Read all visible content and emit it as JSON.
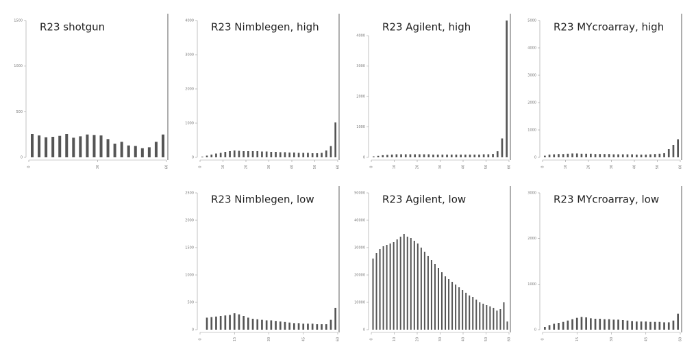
{
  "chart_data": [
    {
      "type": "histogram",
      "title": "R23 shotgun",
      "color": "#555555",
      "bins": [
        0,
        3,
        6,
        9,
        12,
        15,
        18,
        21,
        24,
        27,
        30,
        33,
        36,
        39,
        42,
        45,
        48,
        51,
        54,
        57,
        60
      ],
      "values": [
        255,
        240,
        220,
        225,
        235,
        255,
        215,
        230,
        250,
        245,
        240,
        200,
        150,
        170,
        130,
        125,
        100,
        110,
        170,
        250
      ],
      "xlim": [
        0,
        60
      ],
      "xticks": [
        0,
        30,
        60
      ],
      "ylim": [
        0,
        1500
      ],
      "yticks": [
        0,
        500,
        1000,
        1500
      ]
    },
    {
      "type": "histogram",
      "title": "R23 Nimblegen, high",
      "color": "#555555",
      "bins": [
        0,
        2,
        4,
        6,
        8,
        10,
        12,
        14,
        16,
        18,
        20,
        22,
        24,
        26,
        28,
        30,
        32,
        34,
        36,
        38,
        40,
        42,
        44,
        46,
        48,
        50,
        52,
        54,
        56,
        58,
        60
      ],
      "values": [
        20,
        50,
        80,
        110,
        130,
        160,
        180,
        200,
        190,
        180,
        180,
        180,
        180,
        170,
        170,
        160,
        160,
        150,
        150,
        140,
        140,
        130,
        130,
        130,
        120,
        120,
        130,
        200,
        330,
        1020
      ],
      "xlim": [
        0,
        60
      ],
      "xticks": [
        0,
        10,
        20,
        30,
        40,
        50,
        60
      ],
      "ylim": [
        0,
        4000
      ],
      "yticks": [
        0,
        1000,
        2000,
        3000,
        4000
      ]
    },
    {
      "type": "histogram",
      "title": "R23 Agilent, high",
      "color": "#555555",
      "bins": [
        0,
        2,
        4,
        6,
        8,
        10,
        12,
        14,
        16,
        18,
        20,
        22,
        24,
        26,
        28,
        30,
        32,
        34,
        36,
        38,
        40,
        42,
        44,
        46,
        48,
        50,
        52,
        54,
        56,
        58,
        60
      ],
      "values": [
        30,
        50,
        70,
        80,
        90,
        100,
        100,
        100,
        100,
        100,
        100,
        100,
        100,
        90,
        90,
        90,
        90,
        90,
        90,
        90,
        90,
        90,
        90,
        90,
        100,
        100,
        110,
        200,
        620,
        4500
      ],
      "xlim": [
        0,
        60
      ],
      "xticks": [
        0,
        10,
        20,
        30,
        40,
        50,
        60
      ],
      "ylim": [
        0,
        4500
      ],
      "yticks": [
        0,
        1000,
        2000,
        3000,
        4000
      ]
    },
    {
      "type": "histogram",
      "title": "R23 MYcroarray, high",
      "color": "#555555",
      "bins": [
        0,
        2,
        4,
        6,
        8,
        10,
        12,
        14,
        16,
        18,
        20,
        22,
        24,
        26,
        28,
        30,
        32,
        34,
        36,
        38,
        40,
        42,
        44,
        46,
        48,
        50,
        52,
        54,
        56,
        58,
        60
      ],
      "values": [
        60,
        100,
        110,
        120,
        120,
        130,
        140,
        140,
        130,
        130,
        130,
        120,
        120,
        120,
        120,
        110,
        110,
        110,
        110,
        110,
        100,
        100,
        100,
        110,
        120,
        130,
        150,
        300,
        450,
        660
      ],
      "xlim": [
        0,
        60
      ],
      "xticks": [
        0,
        10,
        20,
        30,
        40,
        50,
        60
      ],
      "ylim": [
        0,
        5000
      ],
      "yticks": [
        0,
        1000,
        2000,
        3000,
        4000,
        5000
      ]
    },
    {
      "type": "histogram",
      "title": "R23 Nimblegen, low",
      "color": "#555555",
      "bins": [
        0,
        2,
        4,
        6,
        8,
        10,
        12,
        14,
        16,
        18,
        20,
        22,
        24,
        26,
        28,
        30,
        32,
        34,
        36,
        38,
        40,
        42,
        44,
        46,
        48,
        50,
        52,
        54,
        56,
        58,
        60
      ],
      "values": [
        0,
        220,
        230,
        240,
        250,
        260,
        270,
        300,
        280,
        250,
        220,
        200,
        190,
        180,
        170,
        170,
        160,
        150,
        140,
        130,
        120,
        120,
        110,
        110,
        110,
        100,
        100,
        100,
        180,
        400
      ],
      "xlim": [
        0,
        60
      ],
      "xticks": [
        0,
        15,
        30,
        45,
        60
      ],
      "ylim": [
        0,
        2500
      ],
      "yticks": [
        0,
        500,
        1000,
        1500,
        2000,
        2500
      ]
    },
    {
      "type": "histogram",
      "title": "R23 Agilent, low",
      "color": "#555555",
      "bins": [
        0,
        1.5,
        3,
        4.5,
        6,
        7.5,
        9,
        10.5,
        12,
        13.5,
        15,
        16.5,
        18,
        19.5,
        21,
        22.5,
        24,
        25.5,
        27,
        28.5,
        30,
        31.5,
        33,
        34.5,
        36,
        37.5,
        39,
        40.5,
        42,
        43.5,
        45,
        46.5,
        48,
        49.5,
        51,
        52.5,
        54,
        55.5,
        57,
        58.5,
        60
      ],
      "values": [
        26000,
        28000,
        29500,
        30500,
        31000,
        31500,
        32000,
        33000,
        34000,
        35000,
        34000,
        33500,
        32500,
        31500,
        30000,
        28500,
        27000,
        25500,
        24000,
        22500,
        21000,
        19500,
        18500,
        17500,
        16500,
        15500,
        14500,
        13500,
        12500,
        12000,
        11000,
        10000,
        9500,
        9000,
        8500,
        8000,
        7000,
        7500,
        10000,
        3000
      ],
      "xlim": [
        0,
        60
      ],
      "xticks": [
        0,
        10,
        20,
        30,
        40,
        50,
        60
      ],
      "ylim": [
        0,
        50000
      ],
      "yticks": [
        0,
        10000,
        20000,
        30000,
        40000,
        50000
      ]
    },
    {
      "type": "histogram",
      "title": "R23 MYcroarray, low",
      "color": "#555555",
      "bins": [
        0,
        2,
        4,
        6,
        8,
        10,
        12,
        14,
        16,
        18,
        20,
        22,
        24,
        26,
        28,
        30,
        32,
        34,
        36,
        38,
        40,
        42,
        44,
        46,
        48,
        50,
        52,
        54,
        56,
        58,
        60
      ],
      "values": [
        60,
        100,
        130,
        150,
        170,
        200,
        230,
        260,
        280,
        270,
        250,
        240,
        240,
        230,
        230,
        220,
        220,
        210,
        200,
        190,
        180,
        180,
        180,
        170,
        170,
        170,
        160,
        160,
        200,
        350
      ],
      "xlim": [
        0,
        60
      ],
      "xticks": [
        0,
        15,
        30,
        45,
        60
      ],
      "ylim": [
        0,
        3000
      ],
      "yticks": [
        0,
        1000,
        2000,
        3000
      ]
    }
  ]
}
